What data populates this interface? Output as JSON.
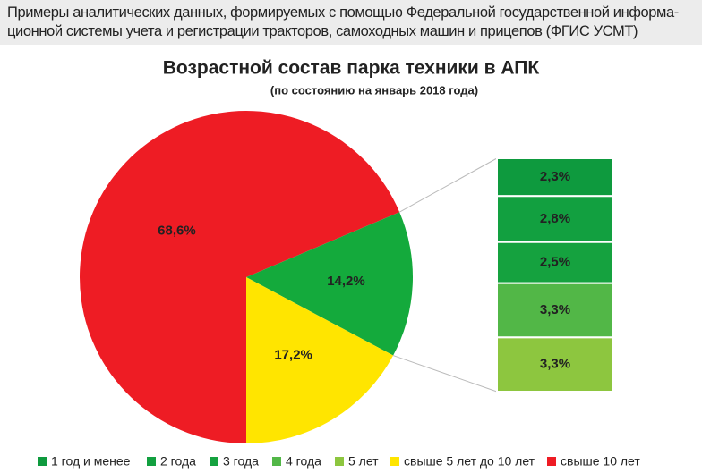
{
  "header": {
    "lines": [
      "Примеры аналитических данных, формируемых с помощью Федеральной государственной информа-",
      "ционной системы учета и регистрации тракторов, самоходных машин и прицепов (ФГИС УСМТ)"
    ]
  },
  "chart_data": {
    "type": "pie",
    "title": "Возрастной состав парка техники в АПК",
    "subtitle": "(по состоянию на январь 2018 года)",
    "categories": [
      "1 год и менее",
      "2 года",
      "3 года",
      "4 года",
      "5 лет",
      "свыше 5 лет до 10 лет",
      "свыше 10 лет"
    ],
    "values": [
      2.3,
      2.8,
      2.5,
      3.3,
      3.3,
      17.2,
      68.6
    ],
    "value_labels": [
      "2,3%",
      "2,8%",
      "2,5%",
      "3,3%",
      "3,3%",
      "17,2%",
      "68,6%"
    ],
    "colors": [
      "#0e9a3e",
      "#12a040",
      "#15a23f",
      "#52b747",
      "#8dc63f",
      "#ffe500",
      "#ee1c24"
    ],
    "group": {
      "value": 14.2,
      "label": "14,2%",
      "color": "#14aa3c"
    }
  }
}
